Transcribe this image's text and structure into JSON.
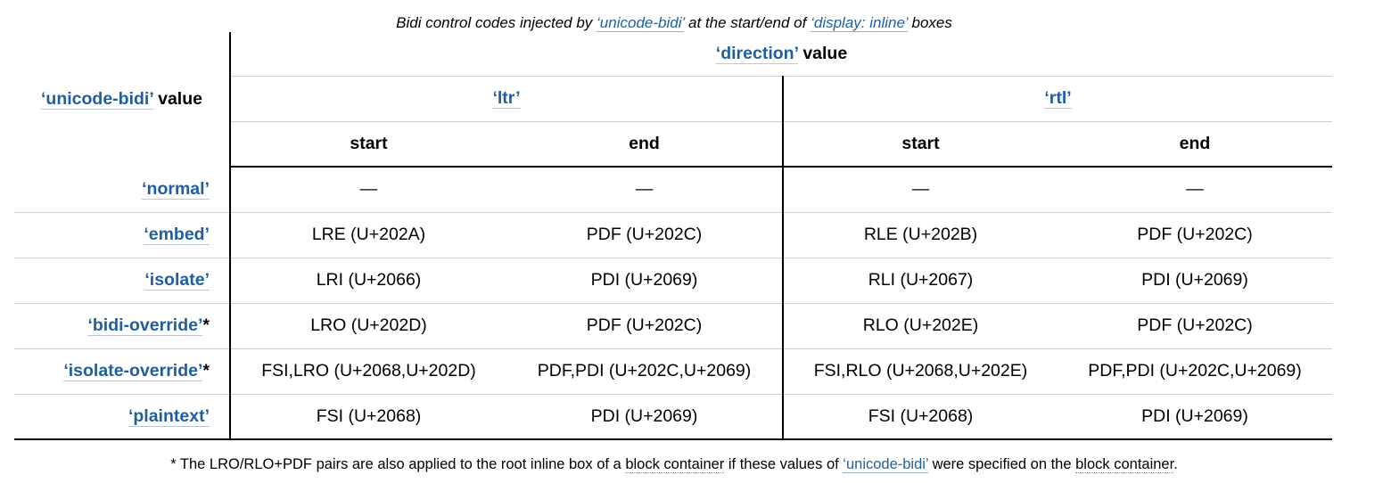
{
  "caption": {
    "prefix": "Bidi control codes injected by ",
    "link1": "‘unicode-bidi’",
    "middle": " at the start/end of ",
    "link2": "‘display: inline’",
    "suffix": " boxes"
  },
  "header": {
    "rowhead_link": "‘unicode-bidi’",
    "rowhead_suffix": " value",
    "direction_link": "‘direction’",
    "direction_suffix": " value",
    "ltr": "‘ltr’",
    "rtl": "‘rtl’",
    "start": "start",
    "end": "end"
  },
  "rows": [
    {
      "label": "‘normal’",
      "star": "",
      "cells": [
        "—",
        "—",
        "—",
        "—"
      ]
    },
    {
      "label": "‘embed’",
      "star": "",
      "cells": [
        "LRE (U+202A)",
        "PDF (U+202C)",
        "RLE (U+202B)",
        "PDF (U+202C)"
      ]
    },
    {
      "label": "‘isolate’",
      "star": "",
      "cells": [
        "LRI (U+2066)",
        "PDI (U+2069)",
        "RLI (U+2067)",
        "PDI (U+2069)"
      ]
    },
    {
      "label": "‘bidi-override’",
      "star": "*",
      "cells": [
        "LRO (U+202D)",
        "PDF (U+202C)",
        "RLO (U+202E)",
        "PDF (U+202C)"
      ]
    },
    {
      "label": "‘isolate-override’",
      "star": "*",
      "cells": [
        "FSI,LRO (U+2068,U+202D)",
        "PDF,PDI (U+202C,U+2069)",
        "FSI,RLO (U+2068,U+202E)",
        "PDF,PDI (U+202C,U+2069)"
      ]
    },
    {
      "label": "‘plaintext’",
      "star": "",
      "cells": [
        "FSI (U+2068)",
        "PDI (U+2069)",
        "FSI (U+2068)",
        "PDI (U+2069)"
      ]
    }
  ],
  "note": {
    "prefix": "* The LRO/RLO+PDF pairs are also applied to the root inline box of a ",
    "term1": "block container",
    "middle": " if these values of ",
    "link": "‘unicode-bidi’",
    "middle2": " were specified on the ",
    "term2": "block container",
    "suffix": "."
  },
  "colors": {
    "link": "#1f5f9e",
    "rule": "#000000",
    "light_rule": "#cfcfcf"
  }
}
